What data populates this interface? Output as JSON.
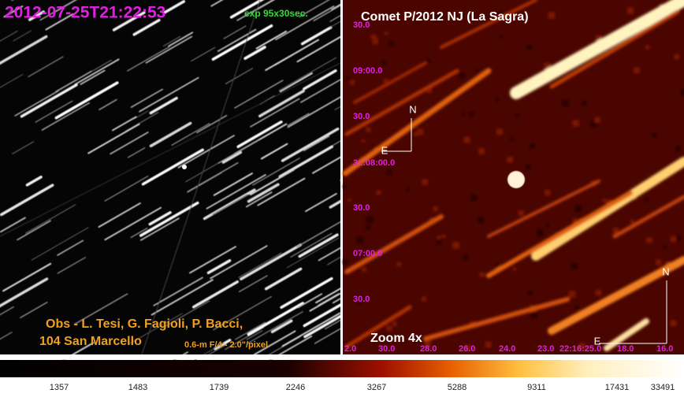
{
  "left_panel": {
    "timestamp": "2012-07-25T21:22:53",
    "exposure": "exp 95x30sec.",
    "observers": "Obs - L. Tesi, G. Fagioli, P. Bacci,",
    "observatory": "104 San Marcello",
    "telescope": "0.6-m F/4 - 2.0\"/pixel"
  },
  "right_panel": {
    "title": "Comet P/2012 NJ (La Sagra)",
    "zoom": "Zoom 4x",
    "dec_labels": [
      "30.0",
      "09:00.0",
      "30.0",
      "31:08:00.0",
      "30.0",
      "07:00.0",
      "30.0"
    ],
    "ra_labels": [
      "2.0",
      "30.0",
      "28.0",
      "26.0",
      "24.0",
      "23.0",
      "22:16:25.0",
      "18.0",
      "16.0"
    ],
    "compass_inner": {
      "north": "N",
      "east": "E"
    },
    "compass_corner": {
      "north": "N",
      "east": "E"
    }
  },
  "colorbar": {
    "labels": [
      1357,
      1483,
      1739,
      2246,
      3267,
      5288,
      9311,
      17431,
      33491
    ]
  }
}
